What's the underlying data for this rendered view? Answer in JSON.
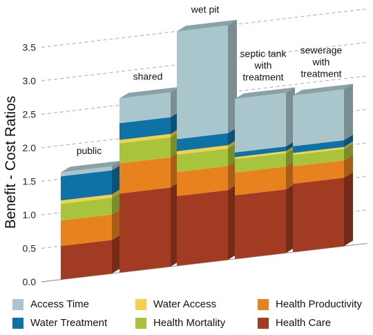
{
  "chart_data": {
    "type": "bar",
    "stacked": true,
    "style": "3d",
    "ylabel": "Benefit - Cost Ratios",
    "xlabel": "",
    "ylim": [
      0,
      3.5
    ],
    "yticks": [
      "0.0",
      "0.5",
      "1.0",
      "1.5",
      "2.0",
      "2.5",
      "3.0",
      "3.5"
    ],
    "grid": true,
    "legend_position": "bottom",
    "categories": [
      "public",
      "shared",
      "wet pit",
      "septic tank with treatment",
      "sewerage with treatment"
    ],
    "category_label_lines": [
      [
        "public"
      ],
      [
        "shared"
      ],
      [
        "wet pit"
      ],
      [
        "septic tank",
        "with",
        "treatment"
      ],
      [
        "sewerage",
        "with",
        "treatment"
      ]
    ],
    "series": [
      {
        "name": "Health Care",
        "color": "#a13c22",
        "values": [
          0.5,
          1.18,
          1.04,
          0.95,
          1.02
        ]
      },
      {
        "name": "Health Productivity",
        "color": "#e8821e",
        "values": [
          0.38,
          0.45,
          0.36,
          0.34,
          0.26
        ]
      },
      {
        "name": "Health Mortality",
        "color": "#a8c43c",
        "values": [
          0.25,
          0.3,
          0.26,
          0.2,
          0.17
        ]
      },
      {
        "name": "Water Access",
        "color": "#f2d24a",
        "values": [
          0.05,
          0.05,
          0.05,
          0.03,
          0.03
        ]
      },
      {
        "name": "Water Treatment",
        "color": "#0f72a7",
        "values": [
          0.36,
          0.25,
          0.18,
          0.07,
          0.1
        ]
      },
      {
        "name": "Access Time",
        "color": "#a8c6cc",
        "values": [
          0.06,
          0.37,
          1.61,
          0.8,
          0.76
        ]
      }
    ]
  },
  "legend": {
    "items": [
      {
        "label": "Access Time",
        "color": "#a8c6cc"
      },
      {
        "label": "Water Access",
        "color": "#f2d24a"
      },
      {
        "label": "Health Productivity",
        "color": "#e8821e"
      },
      {
        "label": "Water Treatment",
        "color": "#0f72a7"
      },
      {
        "label": "Health Mortality",
        "color": "#a8c43c"
      },
      {
        "label": "Health Care",
        "color": "#a13c22"
      }
    ]
  }
}
